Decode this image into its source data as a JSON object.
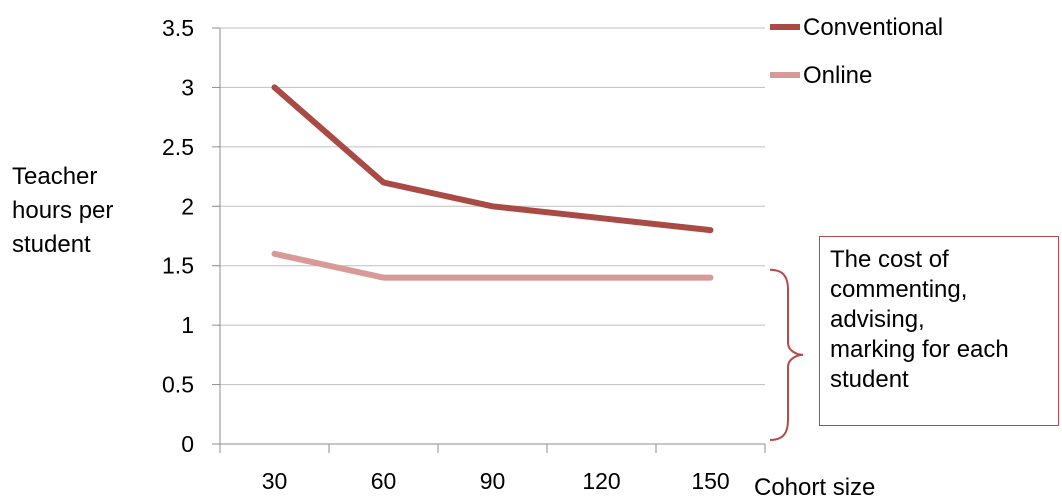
{
  "chart_data": {
    "type": "line",
    "categories": [
      "30",
      "60",
      "90",
      "120",
      "150"
    ],
    "ylabel_lines": [
      "Teacher",
      "hours per",
      "student"
    ],
    "xlabel": "Cohort size",
    "ylim": [
      0,
      3.5
    ],
    "yticks": [
      "0",
      "0.5",
      "1",
      "1.5",
      "2",
      "2.5",
      "3",
      "3.5"
    ],
    "grid": true,
    "legend_position": "top-right",
    "series": [
      {
        "name": "Conventional",
        "values": [
          3.0,
          2.2,
          2.0,
          1.9,
          1.8
        ],
        "color": "#a94a45"
      },
      {
        "name": "Online",
        "values": [
          1.6,
          1.4,
          1.4,
          1.4,
          1.4
        ],
        "color": "#d79a99"
      }
    ],
    "annotation": {
      "lines": [
        "The cost of",
        "commenting,",
        "advising,",
        "marking for each",
        "student"
      ],
      "border_color": "#b64a4a",
      "brace_range": [
        0,
        1.5
      ]
    }
  }
}
